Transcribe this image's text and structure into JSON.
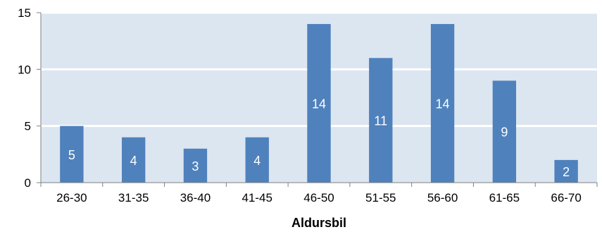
{
  "chart_data": {
    "type": "bar",
    "title": "",
    "xlabel": "Aldursbil",
    "ylabel": "",
    "categories": [
      "26-30",
      "31-35",
      "36-40",
      "41-45",
      "46-50",
      "51-55",
      "56-60",
      "61-65",
      "66-70"
    ],
    "values": [
      5,
      4,
      3,
      4,
      14,
      11,
      14,
      9,
      2
    ],
    "data_labels": [
      "5",
      "4",
      "3",
      "4",
      "14",
      "11",
      "14",
      "9",
      "2"
    ],
    "ylim": [
      0,
      15
    ],
    "yticks": [
      0,
      5,
      10,
      15
    ],
    "grid": true,
    "legend": "none",
    "colors": {
      "bar": "#4f81bd",
      "plot_background": "#dce6f1",
      "gridline": "#ffffff",
      "axis": "#808080"
    }
  }
}
